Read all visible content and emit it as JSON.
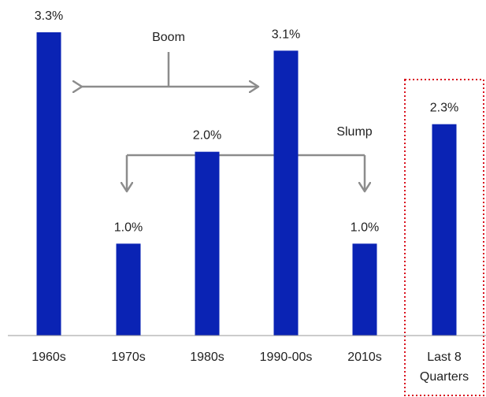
{
  "chart_data": {
    "type": "bar",
    "categories": [
      "1960s",
      "1970s",
      "1980s",
      "1990-00s",
      "2010s",
      "Last 8 Quarters"
    ],
    "category_label_lines": [
      [
        "1960s"
      ],
      [
        "1970s"
      ],
      [
        "1980s"
      ],
      [
        "1990-00s"
      ],
      [
        "2010s"
      ],
      [
        "Last 8",
        "Quarters"
      ]
    ],
    "values": [
      3.3,
      1.0,
      2.0,
      3.1,
      1.0,
      2.3
    ],
    "value_labels": [
      "3.3%",
      "1.0%",
      "2.0%",
      "3.1%",
      "1.0%",
      "2.3%"
    ],
    "ylim": [
      0,
      3.3
    ],
    "grid": false,
    "colors": {
      "bar": "#0a23b4",
      "arrow": "#8c8c8c",
      "highlight_border": "#d9121f",
      "text": "#1f1f1f",
      "axis": "#9a9a9a"
    },
    "annotations": [
      {
        "label": "Boom",
        "type": "double-arrow",
        "from_category": "1960s",
        "to_category": "1990-00s"
      },
      {
        "label": "Slump",
        "type": "bracket-down-arrows",
        "from_category": "1970s",
        "to_category": "2010s"
      }
    ],
    "highlight": {
      "category": "Last 8 Quarters",
      "style": "dotted-box"
    }
  }
}
